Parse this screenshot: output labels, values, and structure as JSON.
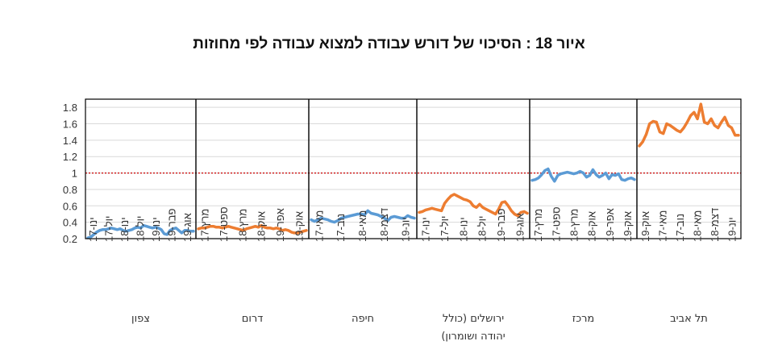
{
  "chart_data": {
    "type": "line",
    "title": "איור 18 : הסיכוי של דורש עבודה למצוא עבודה לפי מחוזות",
    "ylim": [
      0.2,
      1.9
    ],
    "yticks": [
      "0.2",
      "0.4",
      "0.6",
      "0.8",
      "1",
      "1.2",
      "1.4",
      "1.6",
      "1.8"
    ],
    "reference_line": {
      "value": 1,
      "style": "dotted",
      "color": "#cc0000"
    },
    "colors": {
      "blue": "#5b9bd5",
      "orange": "#ed7d31",
      "frame": "#000000",
      "grid": "#d9d9d9"
    },
    "panels": [
      {
        "region_lines": [
          "צפון"
        ],
        "color": "#5b9bd5",
        "xticks": [
          "ינו-17",
          "יול-17",
          "ינו-18",
          "יול-18",
          "ינו-19",
          "פבר-19",
          "אוג-19"
        ],
        "values": [
          0.21,
          0.22,
          0.25,
          0.28,
          0.3,
          0.31,
          0.31,
          0.32,
          0.33,
          0.32,
          0.31,
          0.32,
          0.3,
          0.29,
          0.3,
          0.31,
          0.33,
          0.34,
          0.33,
          0.36,
          0.35,
          0.34,
          0.33,
          0.34,
          0.33,
          0.31,
          0.26,
          0.25,
          0.3,
          0.32,
          0.33,
          0.3,
          0.27,
          0.3,
          0.3,
          0.29,
          0.29
        ]
      },
      {
        "region_lines": [
          "דרום"
        ],
        "color": "#ed7d31",
        "xticks": [
          "מרץ-17",
          "ספט-17",
          "מרץ-18",
          "אוק-18",
          "אפר-19",
          "אוק-19"
        ],
        "values": [
          0.32,
          0.33,
          0.33,
          0.34,
          0.35,
          0.35,
          0.34,
          0.34,
          0.33,
          0.34,
          0.35,
          0.34,
          0.33,
          0.32,
          0.31,
          0.3,
          0.32,
          0.33,
          0.34,
          0.35,
          0.34,
          0.36,
          0.34,
          0.33,
          0.33,
          0.32,
          0.33,
          0.32,
          0.3,
          0.31,
          0.3,
          0.28,
          0.27,
          0.27,
          0.28,
          0.29,
          0.3
        ]
      },
      {
        "region_lines": [
          "חיפה"
        ],
        "color": "#5b9bd5",
        "xticks": [
          "מאי-17",
          "נוב-17",
          "מאי-18",
          "דצמ-18",
          "יונ-19"
        ],
        "values": [
          0.43,
          0.41,
          0.43,
          0.45,
          0.44,
          0.43,
          0.41,
          0.4,
          0.42,
          0.45,
          0.46,
          0.47,
          0.48,
          0.49,
          0.5,
          0.5,
          0.49,
          0.54,
          0.51,
          0.5,
          0.49,
          0.47,
          0.45,
          0.42,
          0.46,
          0.47,
          0.46,
          0.45,
          0.45,
          0.48,
          0.46,
          0.45
        ]
      },
      {
        "region_lines": [
          "ירושלים (כולל",
          "יהודה ושומרון)"
        ],
        "color": "#ed7d31",
        "xticks": [
          "ינו-17",
          "יול-17",
          "ינו-18",
          "יול-18",
          "פבר-19",
          "אוג-19"
        ],
        "values": [
          0.52,
          0.53,
          0.55,
          0.56,
          0.57,
          0.56,
          0.55,
          0.54,
          0.63,
          0.68,
          0.72,
          0.74,
          0.72,
          0.7,
          0.68,
          0.67,
          0.65,
          0.6,
          0.58,
          0.62,
          0.58,
          0.56,
          0.54,
          0.52,
          0.5,
          0.56,
          0.64,
          0.65,
          0.6,
          0.54,
          0.5,
          0.48,
          0.52,
          0.53,
          0.51
        ]
      },
      {
        "region_lines": [
          "מרכז"
        ],
        "color": "#5b9bd5",
        "xticks": [
          "מרץ-17",
          "ספט-17",
          "מרץ-18",
          "אוק-18",
          "אפר-19",
          "אוק-19"
        ],
        "values": [
          0.91,
          0.92,
          0.94,
          0.98,
          1.03,
          1.05,
          0.96,
          0.9,
          0.97,
          0.99,
          1.0,
          1.01,
          1.0,
          0.99,
          1.0,
          1.02,
          1.0,
          0.95,
          0.97,
          1.04,
          0.98,
          0.95,
          0.97,
          1.0,
          0.93,
          0.98,
          0.97,
          0.99,
          0.92,
          0.91,
          0.93,
          0.94,
          0.92
        ]
      },
      {
        "region_lines": [
          "תל אביב"
        ],
        "color": "#ed7d31",
        "xticks": [
          "אוק-19",
          "מאי-17",
          "נוב-17",
          "מאי-18",
          "דצמ-18",
          "יונ-19"
        ],
        "values": [
          1.33,
          1.38,
          1.47,
          1.6,
          1.63,
          1.62,
          1.5,
          1.48,
          1.6,
          1.58,
          1.55,
          1.52,
          1.5,
          1.55,
          1.62,
          1.7,
          1.74,
          1.66,
          1.84,
          1.62,
          1.6,
          1.66,
          1.58,
          1.55,
          1.62,
          1.68,
          1.58,
          1.55,
          1.46,
          1.46
        ]
      }
    ]
  }
}
